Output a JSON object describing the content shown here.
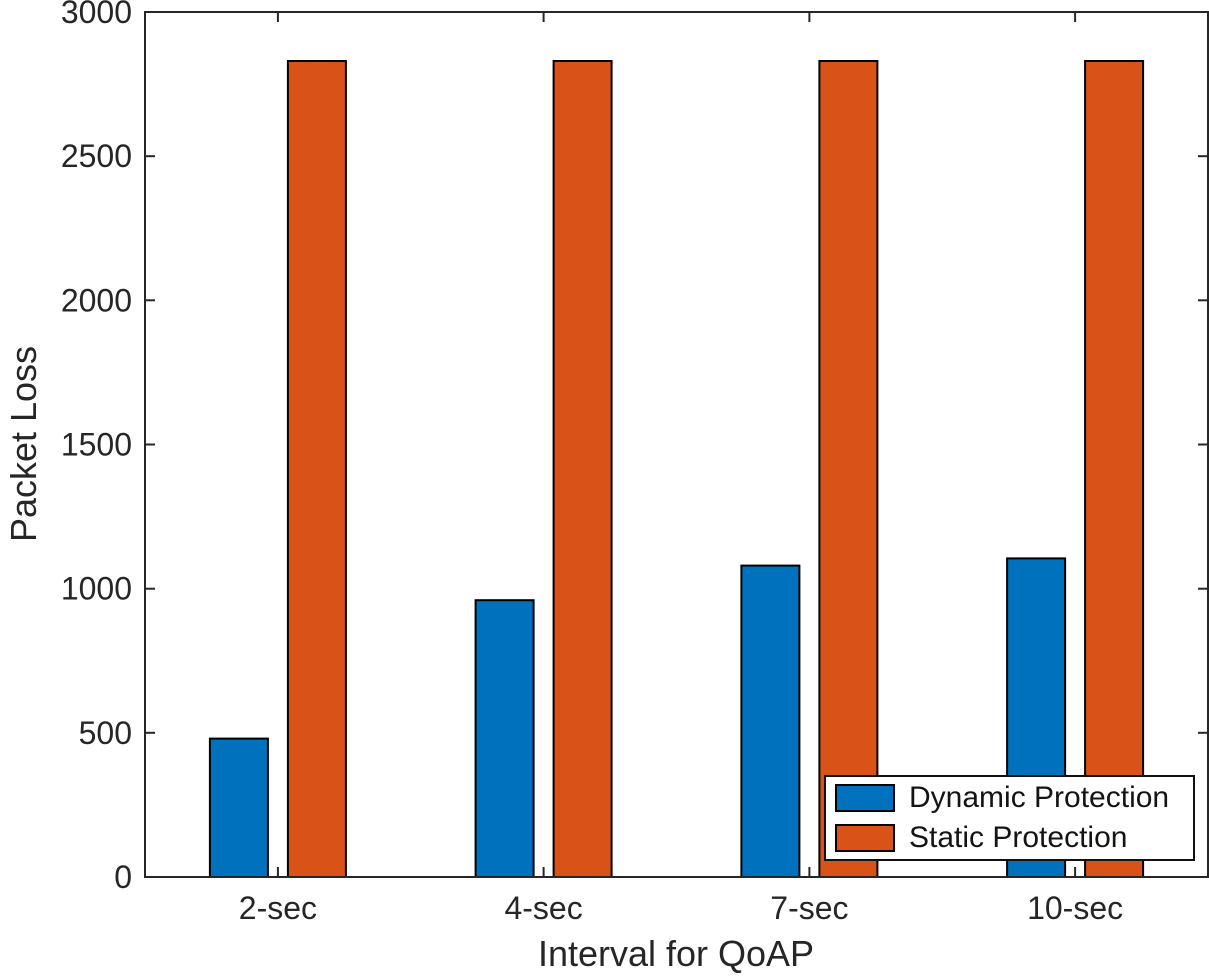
{
  "figure": {
    "background_color": "#ffffff",
    "axis_color": "#262626",
    "text_color": "#262626",
    "bar_edge_color": "#000000"
  },
  "chart_data": {
    "type": "bar",
    "title": "",
    "xlabel": "Interval for QoAP",
    "ylabel": "Packet Loss",
    "categories": [
      "2-sec",
      "4-sec",
      "7-sec",
      "10-sec"
    ],
    "series": [
      {
        "name": "Dynamic Protection",
        "color": "#0072BD",
        "values": [
          480,
          960,
          1080,
          1105
        ]
      },
      {
        "name": "Static Protection",
        "color": "#D95319",
        "values": [
          2830,
          2830,
          2830,
          2830
        ]
      }
    ],
    "ylim": [
      0,
      3000
    ],
    "yticks": [
      0,
      500,
      1000,
      1500,
      2000,
      2500,
      3000
    ],
    "grid": false,
    "legend_position": "bottom-right"
  }
}
